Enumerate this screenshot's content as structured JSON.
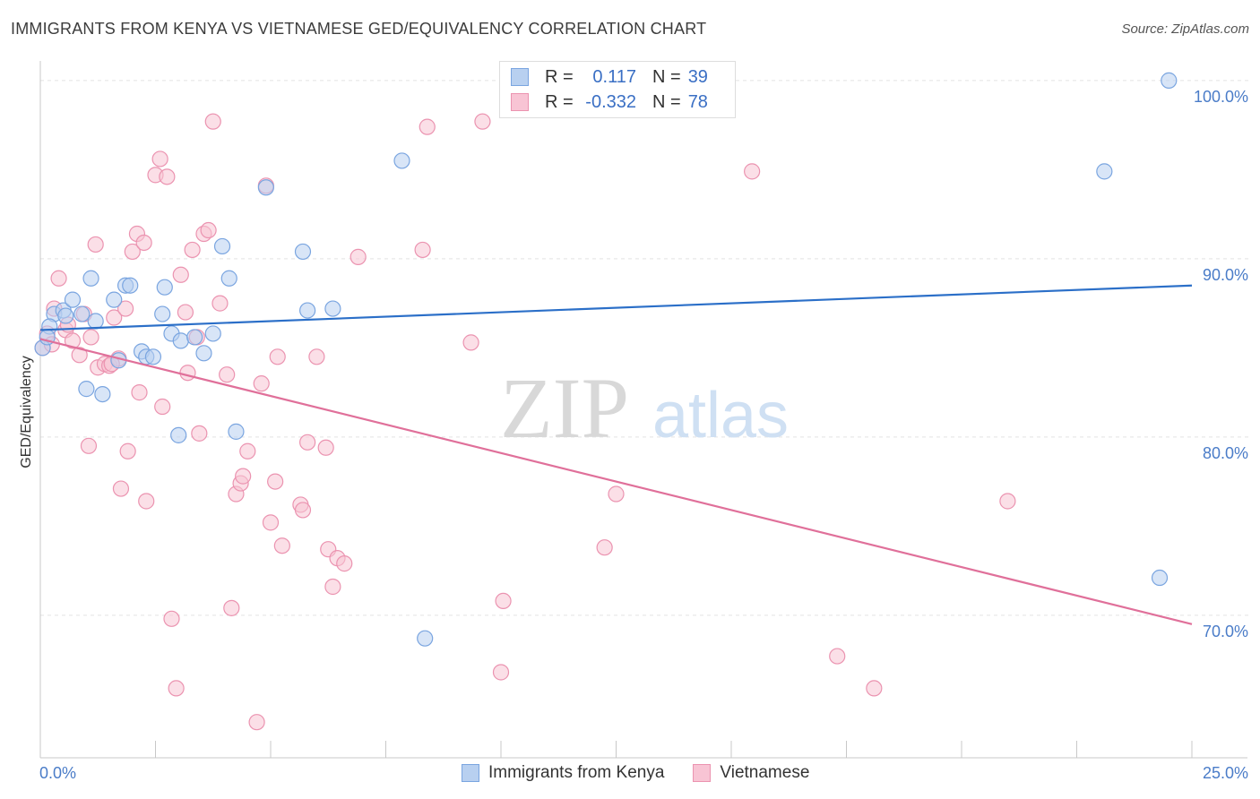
{
  "header": {
    "title": "IMMIGRANTS FROM KENYA VS VIETNAMESE GED/EQUIVALENCY CORRELATION CHART",
    "source": "Source: ZipAtlas.com"
  },
  "legend": {
    "series": [
      {
        "r_label": "R =",
        "r_value": "0.117",
        "n_label": "N =",
        "n_value": "39"
      },
      {
        "r_label": "R =",
        "r_value": "-0.332",
        "n_label": "N =",
        "n_value": "78"
      }
    ]
  },
  "bottom_legend": {
    "kenya": "Immigrants from Kenya",
    "vietnamese": "Vietnamese"
  },
  "watermark": {
    "zip": "ZIP",
    "atlas": "atlas"
  },
  "colors": {
    "kenya_fill": "#b8d0f0",
    "kenya_stroke": "#7aa5e0",
    "kenya_line": "#2b6fc8",
    "viet_fill": "#f8c4d4",
    "viet_stroke": "#eb93b0",
    "viet_line": "#e0709a",
    "axis_text": "#4a7cc8"
  },
  "chart_data": {
    "type": "scatter",
    "title": "IMMIGRANTS FROM KENYA VS VIETNAMESE GED/EQUIVALENCY CORRELATION CHART",
    "xlabel": "",
    "ylabel": "GED/Equivalency",
    "xlim": [
      0,
      25
    ],
    "ylim": [
      62,
      101
    ],
    "x_tick_labels": [
      "0.0%",
      "25.0%"
    ],
    "y_ticks": [
      70,
      80,
      90,
      100
    ],
    "y_tick_labels": [
      "70.0%",
      "80.0%",
      "90.0%",
      "100.0%"
    ],
    "grid": true,
    "legend_position": "top-center",
    "series": [
      {
        "name": "Immigrants from Kenya",
        "trend": {
          "x": [
            0,
            25
          ],
          "y": [
            86.0,
            88.5
          ]
        },
        "points": [
          {
            "x": 0.05,
            "y": 85.0
          },
          {
            "x": 0.3,
            "y": 86.9
          },
          {
            "x": 0.5,
            "y": 87.1
          },
          {
            "x": 0.55,
            "y": 86.8
          },
          {
            "x": 0.7,
            "y": 87.7
          },
          {
            "x": 0.9,
            "y": 86.9
          },
          {
            "x": 1.1,
            "y": 88.9
          },
          {
            "x": 1.2,
            "y": 86.5
          },
          {
            "x": 1.6,
            "y": 87.7
          },
          {
            "x": 1.85,
            "y": 88.5
          },
          {
            "x": 1.95,
            "y": 88.5
          },
          {
            "x": 1.0,
            "y": 82.7
          },
          {
            "x": 1.35,
            "y": 82.4
          },
          {
            "x": 1.7,
            "y": 84.3
          },
          {
            "x": 2.2,
            "y": 84.8
          },
          {
            "x": 2.3,
            "y": 84.5
          },
          {
            "x": 2.45,
            "y": 84.5
          },
          {
            "x": 2.65,
            "y": 86.9
          },
          {
            "x": 2.7,
            "y": 88.4
          },
          {
            "x": 2.85,
            "y": 85.8
          },
          {
            "x": 3.05,
            "y": 85.4
          },
          {
            "x": 3.35,
            "y": 85.6
          },
          {
            "x": 3.55,
            "y": 84.7
          },
          {
            "x": 3.75,
            "y": 85.8
          },
          {
            "x": 3.95,
            "y": 90.7
          },
          {
            "x": 4.1,
            "y": 88.9
          },
          {
            "x": 4.25,
            "y": 80.3
          },
          {
            "x": 3.0,
            "y": 80.1
          },
          {
            "x": 4.9,
            "y": 94.0
          },
          {
            "x": 5.7,
            "y": 90.4
          },
          {
            "x": 5.8,
            "y": 87.1
          },
          {
            "x": 6.35,
            "y": 87.2
          },
          {
            "x": 7.85,
            "y": 95.5
          },
          {
            "x": 8.35,
            "y": 68.7
          },
          {
            "x": 24.5,
            "y": 100.0
          },
          {
            "x": 23.1,
            "y": 94.9
          },
          {
            "x": 24.3,
            "y": 72.1
          },
          {
            "x": 0.2,
            "y": 86.2
          },
          {
            "x": 0.15,
            "y": 85.6
          }
        ]
      },
      {
        "name": "Vietnamese",
        "trend": {
          "x": [
            0,
            25
          ],
          "y": [
            85.5,
            69.5
          ]
        },
        "points": [
          {
            "x": 0.05,
            "y": 85.0
          },
          {
            "x": 0.15,
            "y": 85.8
          },
          {
            "x": 0.3,
            "y": 87.2
          },
          {
            "x": 0.4,
            "y": 88.9
          },
          {
            "x": 0.55,
            "y": 86.0
          },
          {
            "x": 0.7,
            "y": 85.4
          },
          {
            "x": 0.85,
            "y": 84.6
          },
          {
            "x": 0.95,
            "y": 86.9
          },
          {
            "x": 1.05,
            "y": 79.5
          },
          {
            "x": 1.1,
            "y": 85.6
          },
          {
            "x": 1.2,
            "y": 90.8
          },
          {
            "x": 1.25,
            "y": 83.9
          },
          {
            "x": 1.4,
            "y": 84.1
          },
          {
            "x": 1.5,
            "y": 84.0
          },
          {
            "x": 1.6,
            "y": 86.7
          },
          {
            "x": 1.7,
            "y": 84.4
          },
          {
            "x": 1.75,
            "y": 77.1
          },
          {
            "x": 1.85,
            "y": 87.2
          },
          {
            "x": 1.9,
            "y": 79.2
          },
          {
            "x": 2.0,
            "y": 90.4
          },
          {
            "x": 2.1,
            "y": 91.4
          },
          {
            "x": 2.15,
            "y": 82.5
          },
          {
            "x": 2.25,
            "y": 90.9
          },
          {
            "x": 2.3,
            "y": 76.4
          },
          {
            "x": 2.5,
            "y": 94.7
          },
          {
            "x": 2.6,
            "y": 95.6
          },
          {
            "x": 2.65,
            "y": 81.7
          },
          {
            "x": 2.75,
            "y": 94.6
          },
          {
            "x": 2.85,
            "y": 69.8
          },
          {
            "x": 2.95,
            "y": 65.9
          },
          {
            "x": 3.05,
            "y": 89.1
          },
          {
            "x": 3.15,
            "y": 87.0
          },
          {
            "x": 3.2,
            "y": 83.6
          },
          {
            "x": 3.3,
            "y": 90.5
          },
          {
            "x": 3.4,
            "y": 85.6
          },
          {
            "x": 3.45,
            "y": 80.2
          },
          {
            "x": 3.55,
            "y": 91.4
          },
          {
            "x": 3.65,
            "y": 91.6
          },
          {
            "x": 3.75,
            "y": 97.7
          },
          {
            "x": 3.9,
            "y": 87.5
          },
          {
            "x": 4.05,
            "y": 83.5
          },
          {
            "x": 4.15,
            "y": 70.4
          },
          {
            "x": 4.25,
            "y": 76.8
          },
          {
            "x": 4.35,
            "y": 77.4
          },
          {
            "x": 4.4,
            "y": 77.8
          },
          {
            "x": 4.5,
            "y": 79.2
          },
          {
            "x": 4.7,
            "y": 64.0
          },
          {
            "x": 4.8,
            "y": 83.0
          },
          {
            "x": 4.9,
            "y": 94.1
          },
          {
            "x": 5.0,
            "y": 75.2
          },
          {
            "x": 5.1,
            "y": 77.5
          },
          {
            "x": 5.15,
            "y": 84.5
          },
          {
            "x": 5.25,
            "y": 73.9
          },
          {
            "x": 5.65,
            "y": 76.2
          },
          {
            "x": 5.7,
            "y": 75.9
          },
          {
            "x": 5.8,
            "y": 79.7
          },
          {
            "x": 6.0,
            "y": 84.5
          },
          {
            "x": 6.2,
            "y": 79.4
          },
          {
            "x": 6.25,
            "y": 73.7
          },
          {
            "x": 6.35,
            "y": 71.6
          },
          {
            "x": 6.45,
            "y": 73.2
          },
          {
            "x": 6.6,
            "y": 72.9
          },
          {
            "x": 6.9,
            "y": 90.1
          },
          {
            "x": 8.3,
            "y": 90.5
          },
          {
            "x": 8.4,
            "y": 97.4
          },
          {
            "x": 9.35,
            "y": 85.3
          },
          {
            "x": 9.6,
            "y": 97.7
          },
          {
            "x": 10.0,
            "y": 66.8
          },
          {
            "x": 10.05,
            "y": 70.8
          },
          {
            "x": 12.25,
            "y": 73.8
          },
          {
            "x": 12.5,
            "y": 76.8
          },
          {
            "x": 15.45,
            "y": 94.9
          },
          {
            "x": 17.3,
            "y": 67.7
          },
          {
            "x": 18.1,
            "y": 65.9
          },
          {
            "x": 21.0,
            "y": 76.4
          },
          {
            "x": 0.25,
            "y": 85.2
          },
          {
            "x": 0.6,
            "y": 86.3
          },
          {
            "x": 1.55,
            "y": 84.1
          }
        ]
      }
    ]
  }
}
